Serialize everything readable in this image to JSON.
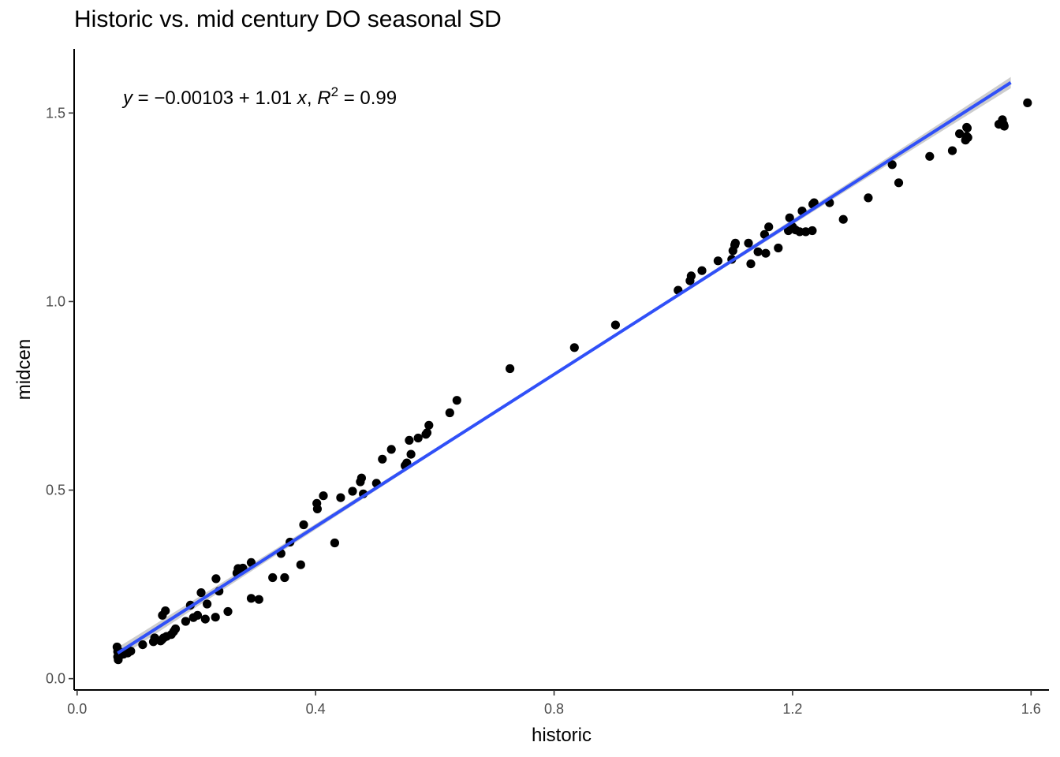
{
  "chart_data": {
    "type": "scatter",
    "title": "Historic vs. mid century DO seasonal SD",
    "xlabel": "historic",
    "ylabel": "midcen",
    "xlim": [
      -0.005,
      1.63
    ],
    "ylim": [
      -0.03,
      1.67
    ],
    "x_ticks": [
      0.0,
      0.4,
      0.8,
      1.2,
      1.6
    ],
    "x_tick_labels": [
      "0.0",
      "0.4",
      "0.8",
      "1.2",
      "1.6"
    ],
    "y_ticks": [
      0.0,
      0.5,
      1.0,
      1.5
    ],
    "y_tick_labels": [
      "0.0",
      "0.5",
      "1.0",
      "1.5"
    ],
    "grid": false,
    "regression": {
      "intercept": -0.00103,
      "slope": 1.01,
      "r2": 0.99,
      "x_range": [
        0.068,
        1.566
      ],
      "color": "#3050f8",
      "band_color": "#c8c8c8"
    },
    "equation": {
      "y_var": "y",
      "eq_sign": " = ",
      "intercept": "−0.00103",
      "plus": " + ",
      "slope": "1.01",
      "x_var": "x",
      "sep": ", ",
      "r_var": "R",
      "r_exp": "2",
      "r_value": " = 0.99"
    },
    "point_color": "#000000",
    "points": [
      [
        0.067,
        0.084
      ],
      [
        0.068,
        0.072
      ],
      [
        0.068,
        0.058
      ],
      [
        0.069,
        0.05
      ],
      [
        0.072,
        0.062
      ],
      [
        0.074,
        0.07
      ],
      [
        0.078,
        0.065
      ],
      [
        0.085,
        0.068
      ],
      [
        0.09,
        0.073
      ],
      [
        0.11,
        0.09
      ],
      [
        0.128,
        0.098
      ],
      [
        0.13,
        0.108
      ],
      [
        0.14,
        0.1
      ],
      [
        0.142,
        0.103
      ],
      [
        0.145,
        0.108
      ],
      [
        0.15,
        0.112
      ],
      [
        0.158,
        0.117
      ],
      [
        0.162,
        0.125
      ],
      [
        0.165,
        0.132
      ],
      [
        0.143,
        0.168
      ],
      [
        0.148,
        0.18
      ],
      [
        0.182,
        0.152
      ],
      [
        0.19,
        0.195
      ],
      [
        0.195,
        0.162
      ],
      [
        0.202,
        0.168
      ],
      [
        0.208,
        0.228
      ],
      [
        0.215,
        0.158
      ],
      [
        0.218,
        0.198
      ],
      [
        0.232,
        0.163
      ],
      [
        0.233,
        0.265
      ],
      [
        0.238,
        0.232
      ],
      [
        0.253,
        0.178
      ],
      [
        0.268,
        0.28
      ],
      [
        0.27,
        0.292
      ],
      [
        0.272,
        0.285
      ],
      [
        0.278,
        0.293
      ],
      [
        0.292,
        0.308
      ],
      [
        0.292,
        0.213
      ],
      [
        0.305,
        0.21
      ],
      [
        0.328,
        0.268
      ],
      [
        0.342,
        0.332
      ],
      [
        0.348,
        0.268
      ],
      [
        0.357,
        0.362
      ],
      [
        0.375,
        0.302
      ],
      [
        0.38,
        0.408
      ],
      [
        0.402,
        0.465
      ],
      [
        0.403,
        0.45
      ],
      [
        0.413,
        0.485
      ],
      [
        0.432,
        0.36
      ],
      [
        0.442,
        0.48
      ],
      [
        0.462,
        0.497
      ],
      [
        0.475,
        0.522
      ],
      [
        0.477,
        0.532
      ],
      [
        0.48,
        0.49
      ],
      [
        0.502,
        0.518
      ],
      [
        0.512,
        0.582
      ],
      [
        0.527,
        0.608
      ],
      [
        0.55,
        0.565
      ],
      [
        0.553,
        0.572
      ],
      [
        0.557,
        0.632
      ],
      [
        0.56,
        0.595
      ],
      [
        0.572,
        0.638
      ],
      [
        0.585,
        0.648
      ],
      [
        0.587,
        0.652
      ],
      [
        0.59,
        0.672
      ],
      [
        0.625,
        0.705
      ],
      [
        0.637,
        0.738
      ],
      [
        0.726,
        0.822
      ],
      [
        0.834,
        0.878
      ],
      [
        0.903,
        0.938
      ],
      [
        1.008,
        1.03
      ],
      [
        1.028,
        1.055
      ],
      [
        1.03,
        1.068
      ],
      [
        1.048,
        1.082
      ],
      [
        1.075,
        1.108
      ],
      [
        1.098,
        1.112
      ],
      [
        1.1,
        1.135
      ],
      [
        1.103,
        1.15
      ],
      [
        1.104,
        1.155
      ],
      [
        1.126,
        1.155
      ],
      [
        1.13,
        1.1
      ],
      [
        1.142,
        1.132
      ],
      [
        1.153,
        1.178
      ],
      [
        1.155,
        1.128
      ],
      [
        1.16,
        1.198
      ],
      [
        1.176,
        1.142
      ],
      [
        1.193,
        1.188
      ],
      [
        1.195,
        1.222
      ],
      [
        1.2,
        1.198
      ],
      [
        1.205,
        1.19
      ],
      [
        1.212,
        1.185
      ],
      [
        1.216,
        1.24
      ],
      [
        1.222,
        1.185
      ],
      [
        1.233,
        1.188
      ],
      [
        1.234,
        1.258
      ],
      [
        1.236,
        1.262
      ],
      [
        1.262,
        1.262
      ],
      [
        1.285,
        1.218
      ],
      [
        1.327,
        1.275
      ],
      [
        1.367,
        1.363
      ],
      [
        1.378,
        1.315
      ],
      [
        1.43,
        1.385
      ],
      [
        1.468,
        1.4
      ],
      [
        1.48,
        1.445
      ],
      [
        1.49,
        1.428
      ],
      [
        1.492,
        1.438
      ],
      [
        1.492,
        1.462
      ],
      [
        1.493,
        1.46
      ],
      [
        1.494,
        1.435
      ],
      [
        1.546,
        1.47
      ],
      [
        1.552,
        1.482
      ],
      [
        1.554,
        1.47
      ],
      [
        1.555,
        1.465
      ],
      [
        1.594,
        1.527
      ]
    ]
  }
}
